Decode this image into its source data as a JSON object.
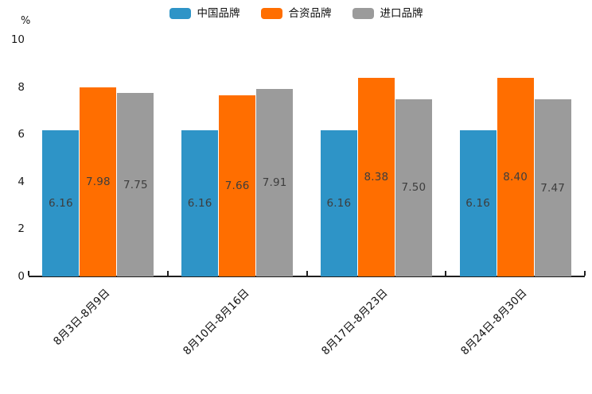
{
  "chart_data": {
    "type": "bar",
    "title": "",
    "unit_label": "%",
    "categories": [
      "8月3日-8月9日",
      "8月10日-8月16日",
      "8月17日-8月23日",
      "8月24日-8月30日"
    ],
    "series": [
      {
        "name": "中国品牌",
        "color": "#2E94C7",
        "values": [
          6.16,
          6.16,
          6.16,
          6.16
        ]
      },
      {
        "name": "合资品牌",
        "color": "#FF6E00",
        "values": [
          7.98,
          7.66,
          8.38,
          8.4
        ]
      },
      {
        "name": "进口品牌",
        "color": "#9B9B9B",
        "values": [
          7.75,
          7.91,
          7.5,
          7.47
        ]
      }
    ],
    "value_labels": [
      "6.16",
      "7.98",
      "7.75",
      "6.16",
      "7.66",
      "7.91",
      "6.16",
      "8.38",
      "7.50",
      "6.16",
      "8.40",
      "7.47"
    ],
    "ylim": [
      0,
      10
    ],
    "yticks": [
      0,
      2,
      4,
      6,
      8,
      10
    ],
    "grid": false,
    "legend_position": "top",
    "value_label_position": "centered inside bars",
    "x_label_rotation_deg": 45
  }
}
